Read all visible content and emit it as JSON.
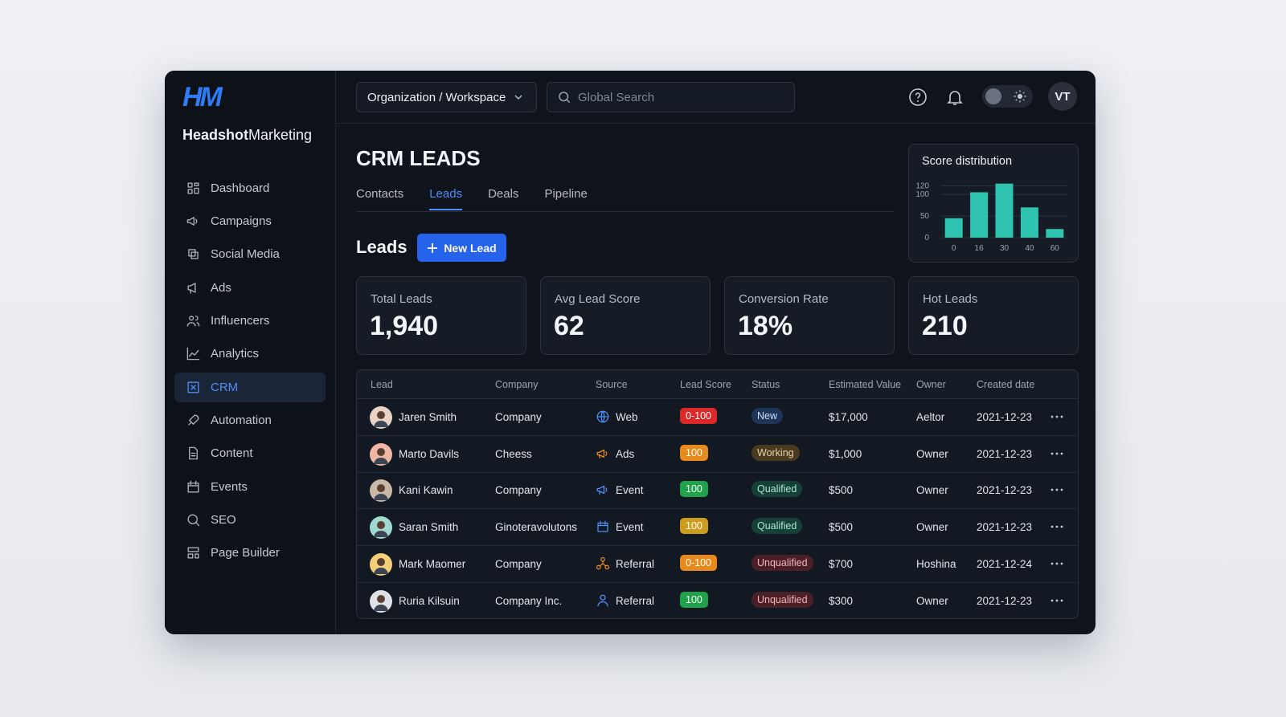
{
  "brand": {
    "logo": "HM",
    "name_bold": "Headshot",
    "name_light": "Marketing"
  },
  "nav": {
    "items": [
      "Dashboard",
      "Campaigns",
      "Social Media",
      "Ads",
      "Influencers",
      "Analytics",
      "CRM",
      "Automation",
      "Content",
      "Events",
      "SEO",
      "Page Builder"
    ],
    "active": 6
  },
  "topbar": {
    "workspace": "Organization / Workspace",
    "search_placeholder": "Global Search",
    "avatar": "VT"
  },
  "page": {
    "title": "CRM LEADS",
    "tabs": [
      "Contacts",
      "Leads",
      "Deals",
      "Pipeline"
    ],
    "active_tab": 1,
    "section_title": "Leads",
    "new_button": "New Lead"
  },
  "stats": [
    {
      "label": "Total Leads",
      "value": "1,940"
    },
    {
      "label": "Avg Lead Score",
      "value": "62"
    },
    {
      "label": "Conversion Rate",
      "value": "18%"
    },
    {
      "label": "Hot Leads",
      "value": "210"
    }
  ],
  "chart_data": {
    "type": "bar",
    "title": "Score distribution",
    "categories": [
      "0",
      "16",
      "30",
      "40",
      "60"
    ],
    "values": [
      45,
      105,
      125,
      70,
      20
    ],
    "color": "#2ec4b0",
    "ylim": [
      0,
      130
    ],
    "yticks": [
      0,
      50,
      100,
      120
    ],
    "grid": true
  },
  "table": {
    "columns": [
      "Lead",
      "Company",
      "Source",
      "Lead Score",
      "Status",
      "Estimated Value",
      "Owner",
      "Created date"
    ],
    "rows": [
      {
        "cells": [
          "Jaren Smith",
          "Company",
          "Web",
          "0-100",
          "New",
          "$17,000",
          "Aeltor",
          "2021-12-23"
        ],
        "score_color": "#dc2828",
        "status_bg": "#1c3558",
        "status_fg": "#cfe0ff"
      },
      {
        "cells": [
          "Marto Davils",
          "Cheess",
          "Ads",
          "100",
          "Working",
          "$1,000",
          "Owner",
          "2021-12-23"
        ],
        "score_color": "#e8891c",
        "status_bg": "#4a3a20",
        "status_fg": "#ead3a6"
      },
      {
        "cells": [
          "Kani Kawin",
          "Company",
          "Event",
          "100",
          "Qualified",
          "$500",
          "Owner",
          "2021-12-23"
        ],
        "score_color": "#1fa34a",
        "status_bg": "#163f38",
        "status_fg": "#a7e8d2"
      },
      {
        "cells": [
          "Saran Smith",
          "Ginoteravolutons",
          "Event",
          "100",
          "Qualified",
          "$500",
          "Owner",
          "2021-12-23"
        ],
        "score_color": "#cf9d1c",
        "status_bg": "#163f38",
        "status_fg": "#a7e8d2"
      },
      {
        "cells": [
          "Mark Maomer",
          "Company",
          "Referral",
          "0-100",
          "Unqualified",
          "$700",
          "Hoshina",
          "2021-12-24"
        ],
        "score_color": "#e8891c",
        "status_bg": "#4a2026",
        "status_fg": "#f3b3b8"
      },
      {
        "cells": [
          "Ruria Kilsuin",
          "Company Inc.",
          "Referral",
          "100",
          "Unqualified",
          "$300",
          "Owner",
          "2021-12-23"
        ],
        "score_color": "#1fa34a",
        "status_bg": "#4a2026",
        "status_fg": "#f3b3b8"
      }
    ]
  }
}
